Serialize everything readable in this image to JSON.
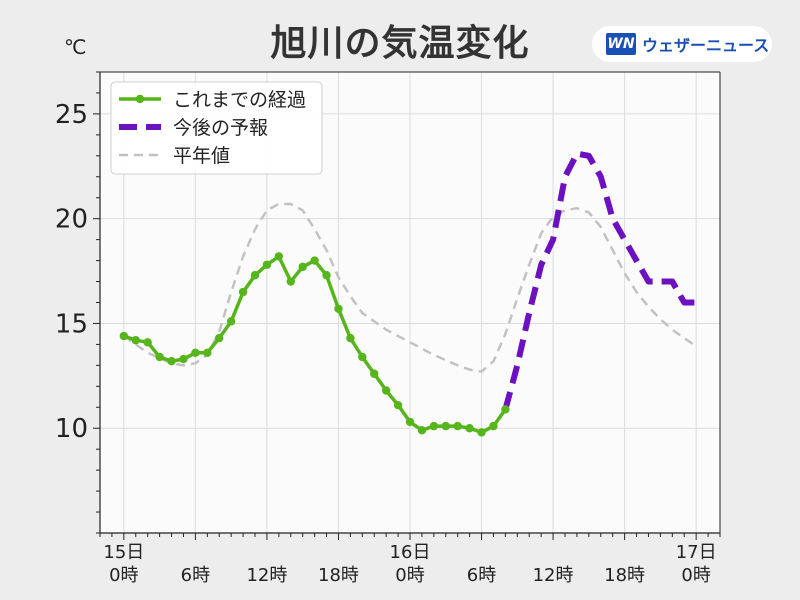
{
  "header": {
    "title": "旭川の気温変化",
    "unit": "℃",
    "brand_logo_text": "WN",
    "brand_name": "ウェザーニュース"
  },
  "colors": {
    "observed": "#55b51a",
    "forecast": "#6d10c0",
    "normal": "#c2c2c2",
    "plot_bg": "#fbfbfc",
    "brand": "#1a4fb5"
  },
  "chart_data": {
    "type": "line",
    "title": "旭川の気温変化",
    "ylabel": "℃",
    "xlim": [
      -2,
      50
    ],
    "ylim": [
      5,
      27
    ],
    "y_ticks": [
      10,
      15,
      20,
      25
    ],
    "x_ticks": [
      {
        "x": 0,
        "label": [
          "15日",
          "0時"
        ]
      },
      {
        "x": 6,
        "label": [
          "",
          "6時"
        ]
      },
      {
        "x": 12,
        "label": [
          "",
          "12時"
        ]
      },
      {
        "x": 18,
        "label": [
          "",
          "18時"
        ]
      },
      {
        "x": 24,
        "label": [
          "16日",
          "0時"
        ]
      },
      {
        "x": 30,
        "label": [
          "",
          "6時"
        ]
      },
      {
        "x": 36,
        "label": [
          "",
          "12時"
        ]
      },
      {
        "x": 42,
        "label": [
          "",
          "18時"
        ]
      },
      {
        "x": 48,
        "label": [
          "17日",
          "0時"
        ]
      }
    ],
    "grid": true,
    "legend_position": "top-left",
    "series": [
      {
        "name": "これまでの経過",
        "style": "solid-markers",
        "x": [
          0,
          1,
          2,
          3,
          4,
          5,
          6,
          7,
          8,
          9,
          10,
          11,
          12,
          13,
          14,
          15,
          16,
          17,
          18,
          19,
          20,
          21,
          22,
          23,
          24,
          25,
          26,
          27,
          28,
          29,
          30,
          31,
          32
        ],
        "y": [
          14.4,
          14.2,
          14.1,
          13.4,
          13.2,
          13.3,
          13.6,
          13.6,
          14.3,
          15.1,
          16.5,
          17.3,
          17.8,
          18.2,
          17.0,
          17.7,
          18.0,
          17.3,
          15.7,
          14.3,
          13.4,
          12.6,
          11.8,
          11.1,
          10.3,
          9.9,
          10.1,
          10.1,
          10.1,
          10.0,
          9.8,
          10.1,
          10.9
        ]
      },
      {
        "name": "今後の予報",
        "style": "dashed-bold",
        "x": [
          32,
          33,
          34,
          35,
          36,
          37,
          38,
          39,
          40,
          41,
          42,
          43,
          44,
          45,
          46,
          47,
          48
        ],
        "y": [
          10.9,
          13.0,
          15.5,
          17.8,
          19.0,
          22.0,
          23.1,
          23.0,
          22.0,
          20.0,
          19.0,
          18.0,
          17.0,
          17.0,
          17.0,
          16.0,
          16.0
        ]
      },
      {
        "name": "平年値",
        "style": "dashed-thin",
        "x": [
          0,
          2,
          4,
          5,
          6,
          7,
          8,
          9,
          10,
          11,
          12,
          13,
          14,
          15,
          16,
          17,
          18,
          19,
          20,
          22,
          24,
          26,
          28,
          29,
          30,
          31,
          32,
          33,
          34,
          35,
          36,
          37,
          38,
          39,
          40,
          41,
          42,
          43,
          44,
          45,
          46,
          47,
          48
        ],
        "y": [
          14.4,
          13.6,
          13.1,
          13.0,
          13.1,
          13.5,
          14.6,
          16.5,
          18.2,
          19.5,
          20.4,
          20.7,
          20.7,
          20.4,
          19.5,
          18.5,
          17.2,
          16.3,
          15.5,
          14.7,
          14.1,
          13.5,
          13.0,
          12.8,
          12.7,
          13.2,
          14.5,
          16.2,
          17.8,
          19.3,
          20.1,
          20.4,
          20.5,
          20.3,
          19.6,
          18.5,
          17.4,
          16.5,
          15.8,
          15.2,
          14.7,
          14.3,
          13.9
        ]
      }
    ]
  }
}
